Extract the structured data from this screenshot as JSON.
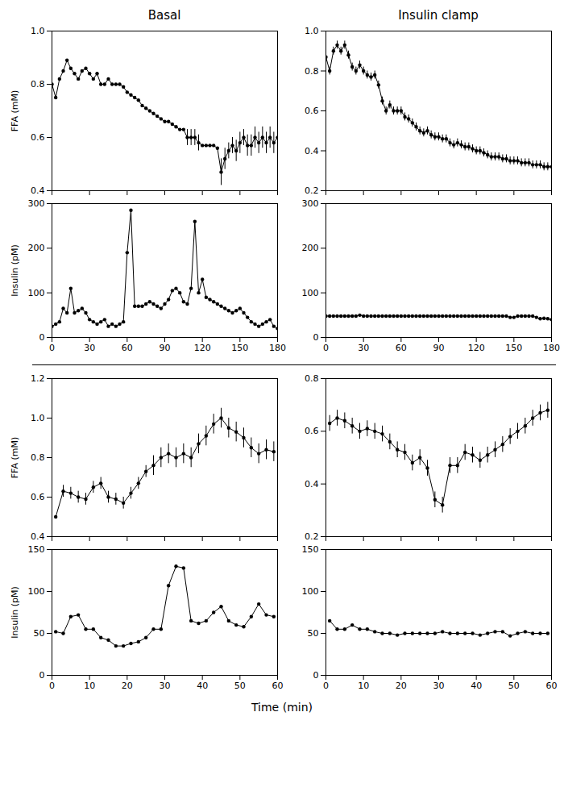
{
  "chart_data": [
    {
      "type": "line",
      "title": "Basal",
      "ylabel": "FFA (mM)",
      "color": "black",
      "marker": "o",
      "line_style": "solid",
      "grid": false,
      "tick_labels": "y",
      "x": [
        0,
        3,
        6,
        9,
        12,
        15,
        18,
        21,
        24,
        27,
        30,
        33,
        36,
        39,
        42,
        45,
        48,
        51,
        54,
        57,
        60,
        63,
        66,
        69,
        72,
        75,
        78,
        81,
        84,
        87,
        90,
        93,
        96,
        99,
        102,
        105,
        108,
        111,
        114,
        117,
        120,
        123,
        126,
        129,
        132,
        135,
        138,
        141,
        144,
        147,
        150,
        153,
        156,
        159,
        162,
        165,
        168,
        171,
        174,
        177,
        180
      ],
      "values": [
        0.8,
        0.75,
        0.82,
        0.85,
        0.89,
        0.86,
        0.84,
        0.82,
        0.85,
        0.86,
        0.84,
        0.82,
        0.84,
        0.8,
        0.8,
        0.82,
        0.8,
        0.8,
        0.8,
        0.79,
        0.77,
        0.76,
        0.75,
        0.74,
        0.72,
        0.71,
        0.7,
        0.69,
        0.68,
        0.67,
        0.66,
        0.66,
        0.65,
        0.64,
        0.63,
        0.63,
        0.6,
        0.6,
        0.6,
        0.58,
        0.57,
        0.57,
        0.57,
        0.57,
        0.56,
        0.47,
        0.52,
        0.55,
        0.57,
        0.55,
        0.58,
        0.6,
        0.57,
        0.57,
        0.6,
        0.58,
        0.6,
        0.58,
        0.6,
        0.58,
        0.6
      ],
      "yerr": [
        0.0,
        0.0,
        0.0,
        0.0,
        0.0,
        0.0,
        0.0,
        0.0,
        0.0,
        0.0,
        0.0,
        0.0,
        0.0,
        0.0,
        0.0,
        0.0,
        0.0,
        0.0,
        0.0,
        0.0,
        0.0,
        0.0,
        0.0,
        0.0,
        0.0,
        0.0,
        0.0,
        0.0,
        0.0,
        0.0,
        0.0,
        0.0,
        0.0,
        0.0,
        0.0,
        0.0,
        0.03,
        0.03,
        0.03,
        0.03,
        0.0,
        0.0,
        0.0,
        0.0,
        0.0,
        0.05,
        0.04,
        0.03,
        0.03,
        0.04,
        0.04,
        0.03,
        0.04,
        0.04,
        0.04,
        0.04,
        0.04,
        0.04,
        0.04,
        0.04,
        0.04
      ],
      "xlim": [
        0,
        180
      ],
      "xticks": [
        0,
        30,
        60,
        90,
        120,
        150,
        180
      ],
      "ylim": [
        0.4,
        1.0
      ],
      "yticks": [
        0.4,
        0.6,
        0.8,
        {
          "value": 1.0,
          "label": "1.0"
        }
      ]
    },
    {
      "type": "line",
      "title": "Insulin clamp",
      "color": "black",
      "marker": "o",
      "line_style": "solid",
      "grid": false,
      "tick_labels": "y",
      "x": [
        0,
        3,
        6,
        9,
        12,
        15,
        18,
        21,
        24,
        27,
        30,
        33,
        36,
        39,
        42,
        45,
        48,
        51,
        54,
        57,
        60,
        63,
        66,
        69,
        72,
        75,
        78,
        81,
        84,
        87,
        90,
        93,
        96,
        99,
        102,
        105,
        108,
        111,
        114,
        117,
        120,
        123,
        126,
        129,
        132,
        135,
        138,
        141,
        144,
        147,
        150,
        153,
        156,
        159,
        162,
        165,
        168,
        171,
        174,
        177,
        180
      ],
      "values": [
        0.87,
        0.8,
        0.9,
        0.93,
        0.9,
        0.93,
        0.88,
        0.82,
        0.8,
        0.83,
        0.8,
        0.78,
        0.77,
        0.78,
        0.73,
        0.65,
        0.6,
        0.63,
        0.6,
        0.6,
        0.6,
        0.57,
        0.56,
        0.54,
        0.52,
        0.5,
        0.49,
        0.5,
        0.48,
        0.47,
        0.47,
        0.46,
        0.46,
        0.44,
        0.43,
        0.44,
        0.43,
        0.42,
        0.42,
        0.41,
        0.4,
        0.4,
        0.39,
        0.38,
        0.37,
        0.37,
        0.37,
        0.36,
        0.36,
        0.35,
        0.35,
        0.35,
        0.34,
        0.34,
        0.34,
        0.33,
        0.33,
        0.33,
        0.32,
        0.32,
        0.32
      ],
      "yerr": [
        0.02,
        0.02,
        0.02,
        0.02,
        0.02,
        0.02,
        0.02,
        0.02,
        0.02,
        0.02,
        0.02,
        0.02,
        0.02,
        0.02,
        0.02,
        0.02,
        0.02,
        0.02,
        0.02,
        0.02,
        0.02,
        0.02,
        0.02,
        0.02,
        0.02,
        0.02,
        0.02,
        0.02,
        0.02,
        0.02,
        0.02,
        0.02,
        0.02,
        0.02,
        0.02,
        0.02,
        0.02,
        0.02,
        0.02,
        0.02,
        0.02,
        0.02,
        0.02,
        0.02,
        0.02,
        0.02,
        0.02,
        0.02,
        0.02,
        0.02,
        0.02,
        0.02,
        0.02,
        0.02,
        0.02,
        0.02,
        0.02,
        0.02,
        0.02,
        0.02,
        0.02
      ],
      "xlim": [
        0,
        180
      ],
      "xticks": [
        0,
        30,
        60,
        90,
        120,
        150,
        180
      ],
      "ylim": [
        0.2,
        1.0
      ],
      "yticks": [
        0.2,
        0.4,
        0.6,
        0.8,
        {
          "value": 1.0,
          "label": "1.0"
        }
      ]
    },
    {
      "type": "line",
      "ylabel": "Insulin (pM)",
      "color": "black",
      "marker": "o",
      "line_style": "solid",
      "grid": false,
      "x": [
        0,
        3,
        6,
        9,
        12,
        15,
        18,
        21,
        24,
        27,
        30,
        33,
        36,
        39,
        42,
        45,
        48,
        51,
        54,
        57,
        60,
        63,
        66,
        69,
        72,
        75,
        78,
        81,
        84,
        87,
        90,
        93,
        96,
        99,
        102,
        105,
        108,
        111,
        114,
        117,
        120,
        123,
        126,
        129,
        132,
        135,
        138,
        141,
        144,
        147,
        150,
        153,
        156,
        159,
        162,
        165,
        168,
        171,
        174,
        177,
        180
      ],
      "values": [
        25,
        30,
        35,
        65,
        55,
        110,
        55,
        60,
        65,
        55,
        40,
        35,
        30,
        35,
        40,
        25,
        30,
        25,
        30,
        35,
        190,
        285,
        70,
        70,
        70,
        75,
        80,
        75,
        70,
        65,
        75,
        85,
        105,
        110,
        100,
        80,
        75,
        110,
        260,
        100,
        130,
        90,
        85,
        80,
        75,
        70,
        65,
        60,
        55,
        60,
        65,
        55,
        45,
        35,
        30,
        25,
        30,
        35,
        40,
        25,
        20
      ],
      "xlim": [
        0,
        180
      ],
      "xticks": [
        0,
        30,
        60,
        90,
        120,
        150,
        180
      ],
      "ylim": [
        0,
        300
      ],
      "yticks": [
        0,
        100,
        200,
        300
      ]
    },
    {
      "type": "line",
      "color": "black",
      "marker": "o",
      "line_style": "solid",
      "grid": false,
      "x": [
        0,
        3,
        6,
        9,
        12,
        15,
        18,
        21,
        24,
        27,
        30,
        33,
        36,
        39,
        42,
        45,
        48,
        51,
        54,
        57,
        60,
        63,
        66,
        69,
        72,
        75,
        78,
        81,
        84,
        87,
        90,
        93,
        96,
        99,
        102,
        105,
        108,
        111,
        114,
        117,
        120,
        123,
        126,
        129,
        132,
        135,
        138,
        141,
        144,
        147,
        150,
        153,
        156,
        159,
        162,
        165,
        168,
        171,
        174,
        177,
        180
      ],
      "values": [
        48,
        48,
        48,
        48,
        48,
        48,
        48,
        48,
        48,
        50,
        48,
        48,
        48,
        48,
        48,
        48,
        48,
        48,
        48,
        48,
        48,
        48,
        48,
        48,
        48,
        48,
        48,
        48,
        48,
        48,
        48,
        48,
        48,
        48,
        48,
        48,
        48,
        48,
        48,
        48,
        48,
        48,
        48,
        48,
        48,
        48,
        48,
        48,
        48,
        45,
        45,
        48,
        48,
        48,
        48,
        48,
        45,
        42,
        43,
        42,
        40
      ],
      "xlim": [
        0,
        180
      ],
      "xticks": [
        0,
        30,
        60,
        90,
        120,
        150,
        180
      ],
      "ylim": [
        0,
        300
      ],
      "yticks": [
        0,
        100,
        200,
        300
      ]
    },
    {
      "type": "line",
      "ylabel": "FFA (mM)",
      "color": "black",
      "marker": "o",
      "line_style": "solid",
      "grid": false,
      "tick_labels": "y",
      "x": [
        1,
        3,
        5,
        7,
        9,
        11,
        13,
        15,
        17,
        19,
        21,
        23,
        25,
        27,
        29,
        31,
        33,
        35,
        37,
        39,
        41,
        43,
        45,
        47,
        49,
        51,
        53,
        55,
        57,
        59
      ],
      "values": [
        0.5,
        0.63,
        0.62,
        0.6,
        0.59,
        0.65,
        0.67,
        0.6,
        0.59,
        0.57,
        0.62,
        0.67,
        0.73,
        0.76,
        0.8,
        0.82,
        0.8,
        0.82,
        0.8,
        0.87,
        0.91,
        0.97,
        1.0,
        0.95,
        0.93,
        0.9,
        0.85,
        0.82,
        0.84,
        0.83
      ],
      "yerr": [
        0.0,
        0.03,
        0.03,
        0.03,
        0.03,
        0.03,
        0.03,
        0.03,
        0.03,
        0.03,
        0.03,
        0.03,
        0.03,
        0.05,
        0.05,
        0.05,
        0.05,
        0.05,
        0.05,
        0.05,
        0.05,
        0.05,
        0.05,
        0.05,
        0.05,
        0.05,
        0.05,
        0.05,
        0.05,
        0.05
      ],
      "xlim": [
        0,
        60
      ],
      "xticks": [
        0,
        10,
        20,
        30,
        40,
        50,
        60
      ],
      "ylim": [
        0.4,
        1.2
      ],
      "yticks": [
        0.4,
        0.6,
        0.8,
        {
          "value": 1.0,
          "label": "1.0"
        },
        1.2
      ]
    },
    {
      "type": "line",
      "color": "black",
      "marker": "o",
      "line_style": "solid",
      "grid": false,
      "tick_labels": "y",
      "x": [
        1,
        3,
        5,
        7,
        9,
        11,
        13,
        15,
        17,
        19,
        21,
        23,
        25,
        27,
        29,
        31,
        33,
        35,
        37,
        39,
        41,
        43,
        45,
        47,
        49,
        51,
        53,
        55,
        57,
        59
      ],
      "values": [
        0.63,
        0.65,
        0.64,
        0.62,
        0.6,
        0.61,
        0.6,
        0.59,
        0.56,
        0.53,
        0.52,
        0.48,
        0.5,
        0.46,
        0.34,
        0.32,
        0.47,
        0.47,
        0.52,
        0.51,
        0.49,
        0.51,
        0.53,
        0.55,
        0.58,
        0.6,
        0.62,
        0.65,
        0.67,
        0.68
      ],
      "yerr": [
        0.03,
        0.03,
        0.03,
        0.03,
        0.03,
        0.03,
        0.03,
        0.03,
        0.03,
        0.03,
        0.03,
        0.03,
        0.03,
        0.03,
        0.03,
        0.03,
        0.03,
        0.03,
        0.03,
        0.03,
        0.03,
        0.03,
        0.03,
        0.03,
        0.03,
        0.03,
        0.03,
        0.03,
        0.03,
        0.03
      ],
      "xlim": [
        0,
        60
      ],
      "xticks": [
        0,
        10,
        20,
        30,
        40,
        50,
        60
      ],
      "ylim": [
        0.2,
        0.8
      ],
      "yticks": [
        0.2,
        0.4,
        0.6,
        0.8
      ]
    },
    {
      "type": "line",
      "ylabel": "Insulin (pM)",
      "xlabel": "Time (min)",
      "color": "black",
      "marker": "o",
      "line_style": "solid",
      "grid": false,
      "x": [
        1,
        3,
        5,
        7,
        9,
        11,
        13,
        15,
        17,
        19,
        21,
        23,
        25,
        27,
        29,
        31,
        33,
        35,
        37,
        39,
        41,
        43,
        45,
        47,
        49,
        51,
        53,
        55,
        57,
        59
      ],
      "values": [
        52,
        50,
        70,
        72,
        55,
        55,
        45,
        42,
        35,
        35,
        38,
        40,
        45,
        55,
        55,
        107,
        130,
        128,
        65,
        62,
        65,
        75,
        82,
        65,
        60,
        58,
        70,
        85,
        72,
        70
      ],
      "xlim": [
        0,
        60
      ],
      "xticks": [
        0,
        10,
        20,
        30,
        40,
        50,
        60
      ],
      "ylim": [
        0,
        150
      ],
      "yticks": [
        0,
        50,
        100,
        150
      ]
    },
    {
      "type": "line",
      "color": "black",
      "marker": "o",
      "line_style": "solid",
      "grid": false,
      "x": [
        1,
        3,
        5,
        7,
        9,
        11,
        13,
        15,
        17,
        19,
        21,
        23,
        25,
        27,
        29,
        31,
        33,
        35,
        37,
        39,
        41,
        43,
        45,
        47,
        49,
        51,
        53,
        55,
        57,
        59
      ],
      "values": [
        65,
        55,
        55,
        60,
        55,
        55,
        52,
        50,
        50,
        48,
        50,
        50,
        50,
        50,
        50,
        52,
        50,
        50,
        50,
        50,
        48,
        50,
        52,
        52,
        47,
        50,
        52,
        50,
        50,
        50
      ],
      "xlim": [
        0,
        60
      ],
      "xticks": [
        0,
        10,
        20,
        30,
        40,
        50,
        60
      ],
      "ylim": [
        0,
        150
      ],
      "yticks": [
        0,
        50,
        100,
        150
      ]
    }
  ]
}
